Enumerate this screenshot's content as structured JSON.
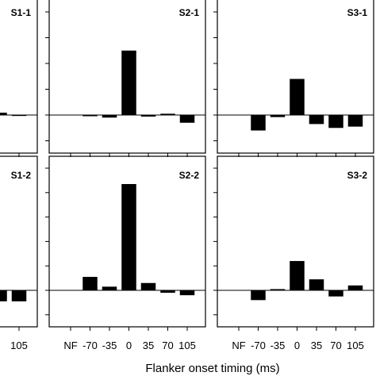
{
  "figure": {
    "xlabel": "Flanker onset timing (ms)"
  },
  "chart_data": [
    {
      "type": "bar",
      "title": "S1-1",
      "categories": [
        "NF",
        "-70",
        "-35",
        "0",
        "35",
        "70",
        "105"
      ],
      "values": [
        null,
        null,
        null,
        null,
        null,
        0.09,
        0.01
      ],
      "ylim": [
        -1,
        4
      ]
    },
    {
      "type": "bar",
      "title": "S2-1",
      "categories": [
        "NF",
        "-70",
        "-35",
        "0",
        "35",
        "70",
        "105"
      ],
      "values": [
        null,
        -0.04,
        -0.1,
        2.5,
        -0.06,
        0.05,
        -0.3
      ],
      "ylim": [
        -1,
        4
      ]
    },
    {
      "type": "bar",
      "title": "S3-1",
      "categories": [
        "NF",
        "-70",
        "-35",
        "0",
        "35",
        "70",
        "105"
      ],
      "values": [
        null,
        -0.6,
        -0.08,
        1.4,
        -0.35,
        -0.5,
        -0.45
      ],
      "ylim": [
        -1,
        4
      ]
    },
    {
      "type": "bar",
      "title": "S1-2",
      "categories": [
        "NF",
        "-70",
        "-35",
        "0",
        "35",
        "70",
        "105"
      ],
      "values": [
        null,
        null,
        null,
        null,
        null,
        -0.45,
        -0.45
      ],
      "ylim": [
        -1,
        5
      ]
    },
    {
      "type": "bar",
      "title": "S2-2",
      "categories": [
        "NF",
        "-70",
        "-35",
        "0",
        "35",
        "70",
        "105"
      ],
      "values": [
        null,
        0.55,
        0.15,
        4.35,
        0.3,
        -0.1,
        -0.2
      ],
      "ylim": [
        -1,
        5
      ]
    },
    {
      "type": "bar",
      "title": "S3-2",
      "categories": [
        "NF",
        "-70",
        "-35",
        "0",
        "35",
        "70",
        "105"
      ],
      "values": [
        null,
        -0.4,
        0.05,
        1.2,
        0.45,
        -0.25,
        0.2
      ],
      "ylim": [
        -1,
        5
      ]
    }
  ]
}
